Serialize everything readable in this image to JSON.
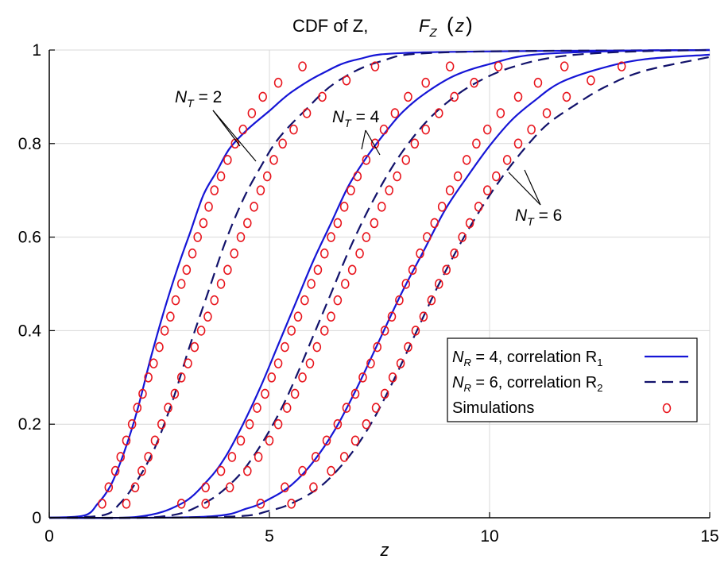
{
  "chart_data": {
    "type": "line",
    "title": "CDF of Z,",
    "title_math": "F",
    "title_math_sub": "Z",
    "title_math_arg": "z",
    "xlabel": "z",
    "ylabel": "",
    "xlim": [
      0,
      15
    ],
    "ylim": [
      0,
      1
    ],
    "x_ticks": [
      "0",
      "5",
      "10",
      "15"
    ],
    "y_ticks": [
      "0",
      "0.2",
      "0.4",
      "0.6",
      "0.8",
      "1"
    ],
    "grid": true,
    "legend_position": "bottom-right",
    "legend": [
      {
        "prefix": "N",
        "sub": "R",
        "text": " = 4, correlation R",
        "sub2": "1",
        "style": "solid"
      },
      {
        "prefix": "N",
        "sub": "R",
        "text": " = 6, correlation R",
        "sub2": "2",
        "style": "dashed"
      },
      {
        "text": "Simulations",
        "style": "marker"
      }
    ],
    "annotations": [
      {
        "symbol": "N",
        "sub": "T",
        "text": " = 2",
        "anchor_x": 3.3,
        "anchor_y": 0.885
      },
      {
        "symbol": "N",
        "sub": "T",
        "text": " = 4",
        "anchor_x": 7.3,
        "anchor_y": 0.845
      },
      {
        "symbol": "N",
        "sub": "T",
        "text": " = 6",
        "anchor_x": 11.2,
        "anchor_y": 0.655
      }
    ],
    "colors": {
      "solid": "#1515d6",
      "dashed": "#12126b",
      "marker": "#e8141c",
      "grid": "#d8d8d8",
      "axis": "#000000"
    },
    "series": [
      {
        "group": "NT=2",
        "style": "solid",
        "points": [
          [
            0,
            0
          ],
          [
            0.8,
            0.005
          ],
          [
            1.1,
            0.03
          ],
          [
            1.4,
            0.07
          ],
          [
            1.7,
            0.14
          ],
          [
            2.0,
            0.23
          ],
          [
            2.3,
            0.34
          ],
          [
            2.6,
            0.44
          ],
          [
            2.9,
            0.53
          ],
          [
            3.2,
            0.61
          ],
          [
            3.5,
            0.69
          ],
          [
            3.8,
            0.74
          ],
          [
            4.1,
            0.79
          ],
          [
            4.5,
            0.83
          ],
          [
            5.0,
            0.87
          ],
          [
            5.5,
            0.91
          ],
          [
            6.2,
            0.95
          ],
          [
            7.0,
            0.98
          ],
          [
            8.5,
            0.995
          ],
          [
            15,
            1.0
          ]
        ]
      },
      {
        "group": "NT=2",
        "style": "dashed",
        "points": [
          [
            0,
            0
          ],
          [
            1.2,
            0.005
          ],
          [
            1.6,
            0.03
          ],
          [
            2.0,
            0.08
          ],
          [
            2.4,
            0.15
          ],
          [
            2.8,
            0.25
          ],
          [
            3.2,
            0.37
          ],
          [
            3.6,
            0.48
          ],
          [
            4.0,
            0.59
          ],
          [
            4.4,
            0.68
          ],
          [
            4.8,
            0.75
          ],
          [
            5.2,
            0.81
          ],
          [
            5.8,
            0.87
          ],
          [
            6.5,
            0.93
          ],
          [
            7.5,
            0.975
          ],
          [
            9.0,
            0.995
          ],
          [
            15,
            1.0
          ]
        ]
      },
      {
        "group": "NT=4",
        "style": "solid",
        "points": [
          [
            0,
            0
          ],
          [
            2.0,
            0.002
          ],
          [
            3.0,
            0.03
          ],
          [
            3.6,
            0.08
          ],
          [
            4.0,
            0.13
          ],
          [
            4.4,
            0.2
          ],
          [
            4.8,
            0.28
          ],
          [
            5.2,
            0.37
          ],
          [
            5.6,
            0.46
          ],
          [
            6.0,
            0.55
          ],
          [
            6.4,
            0.63
          ],
          [
            6.8,
            0.71
          ],
          [
            7.2,
            0.77
          ],
          [
            7.6,
            0.82
          ],
          [
            8.0,
            0.865
          ],
          [
            8.5,
            0.905
          ],
          [
            9.2,
            0.945
          ],
          [
            10.0,
            0.97
          ],
          [
            11.0,
            0.99
          ],
          [
            13.0,
            0.998
          ],
          [
            15,
            1.0
          ]
        ]
      },
      {
        "group": "NT=4",
        "style": "dashed",
        "points": [
          [
            0,
            0
          ],
          [
            2.5,
            0.002
          ],
          [
            3.5,
            0.03
          ],
          [
            4.2,
            0.08
          ],
          [
            4.7,
            0.14
          ],
          [
            5.2,
            0.22
          ],
          [
            5.6,
            0.3
          ],
          [
            6.0,
            0.39
          ],
          [
            6.4,
            0.48
          ],
          [
            6.8,
            0.57
          ],
          [
            7.2,
            0.65
          ],
          [
            7.6,
            0.72
          ],
          [
            8.0,
            0.78
          ],
          [
            8.5,
            0.84
          ],
          [
            9.0,
            0.885
          ],
          [
            9.6,
            0.925
          ],
          [
            10.4,
            0.96
          ],
          [
            11.5,
            0.985
          ],
          [
            13.0,
            0.996
          ],
          [
            15,
            1.0
          ]
        ]
      },
      {
        "group": "NT=6",
        "style": "solid",
        "points": [
          [
            0,
            0
          ],
          [
            3.5,
            0.002
          ],
          [
            4.5,
            0.02
          ],
          [
            5.0,
            0.04
          ],
          [
            5.5,
            0.07
          ],
          [
            6.0,
            0.12
          ],
          [
            6.5,
            0.19
          ],
          [
            7.0,
            0.28
          ],
          [
            7.5,
            0.38
          ],
          [
            8.0,
            0.48
          ],
          [
            8.5,
            0.57
          ],
          [
            9.0,
            0.66
          ],
          [
            9.5,
            0.73
          ],
          [
            10.0,
            0.795
          ],
          [
            10.5,
            0.85
          ],
          [
            11.0,
            0.89
          ],
          [
            11.6,
            0.93
          ],
          [
            12.5,
            0.96
          ],
          [
            13.5,
            0.98
          ],
          [
            15,
            0.99
          ]
        ]
      },
      {
        "group": "NT=6",
        "style": "dashed",
        "points": [
          [
            0,
            0
          ],
          [
            4.0,
            0.002
          ],
          [
            5.0,
            0.015
          ],
          [
            5.6,
            0.035
          ],
          [
            6.2,
            0.07
          ],
          [
            6.8,
            0.13
          ],
          [
            7.3,
            0.2
          ],
          [
            7.8,
            0.29
          ],
          [
            8.3,
            0.39
          ],
          [
            8.8,
            0.49
          ],
          [
            9.3,
            0.58
          ],
          [
            9.8,
            0.66
          ],
          [
            10.3,
            0.73
          ],
          [
            10.8,
            0.79
          ],
          [
            11.3,
            0.84
          ],
          [
            11.9,
            0.88
          ],
          [
            12.6,
            0.92
          ],
          [
            13.5,
            0.955
          ],
          [
            15,
            0.985
          ]
        ]
      }
    ],
    "markers": [
      {
        "group": "NT=2",
        "points": [
          [
            1.2,
            0.03
          ],
          [
            1.35,
            0.065
          ],
          [
            1.5,
            0.1
          ],
          [
            1.62,
            0.13
          ],
          [
            1.75,
            0.165
          ],
          [
            1.88,
            0.2
          ],
          [
            2.0,
            0.235
          ],
          [
            2.12,
            0.265
          ],
          [
            2.25,
            0.3
          ],
          [
            2.37,
            0.33
          ],
          [
            2.5,
            0.365
          ],
          [
            2.62,
            0.4
          ],
          [
            2.75,
            0.43
          ],
          [
            2.87,
            0.465
          ],
          [
            3.0,
            0.5
          ],
          [
            3.12,
            0.53
          ],
          [
            3.25,
            0.565
          ],
          [
            3.37,
            0.6
          ],
          [
            3.5,
            0.63
          ],
          [
            3.62,
            0.665
          ],
          [
            3.75,
            0.7
          ],
          [
            3.9,
            0.73
          ],
          [
            4.05,
            0.765
          ],
          [
            4.22,
            0.8
          ],
          [
            4.4,
            0.83
          ],
          [
            4.6,
            0.865
          ],
          [
            4.85,
            0.9
          ],
          [
            5.2,
            0.93
          ],
          [
            5.75,
            0.965
          ],
          [
            1.75,
            0.03
          ],
          [
            1.95,
            0.065
          ],
          [
            2.1,
            0.1
          ],
          [
            2.25,
            0.13
          ],
          [
            2.4,
            0.165
          ],
          [
            2.55,
            0.2
          ],
          [
            2.7,
            0.235
          ],
          [
            2.85,
            0.265
          ],
          [
            3.0,
            0.3
          ],
          [
            3.15,
            0.33
          ],
          [
            3.3,
            0.365
          ],
          [
            3.45,
            0.4
          ],
          [
            3.6,
            0.43
          ],
          [
            3.75,
            0.465
          ],
          [
            3.9,
            0.5
          ],
          [
            4.05,
            0.53
          ],
          [
            4.2,
            0.565
          ],
          [
            4.35,
            0.6
          ],
          [
            4.5,
            0.63
          ],
          [
            4.65,
            0.665
          ],
          [
            4.8,
            0.7
          ],
          [
            4.95,
            0.73
          ],
          [
            5.1,
            0.765
          ],
          [
            5.3,
            0.8
          ],
          [
            5.55,
            0.83
          ],
          [
            5.85,
            0.865
          ],
          [
            6.2,
            0.9
          ],
          [
            6.75,
            0.935
          ],
          [
            7.4,
            0.965
          ]
        ]
      },
      {
        "group": "NT=4",
        "points": [
          [
            3.0,
            0.03
          ],
          [
            3.55,
            0.065
          ],
          [
            3.9,
            0.1
          ],
          [
            4.15,
            0.13
          ],
          [
            4.35,
            0.165
          ],
          [
            4.55,
            0.2
          ],
          [
            4.72,
            0.235
          ],
          [
            4.9,
            0.265
          ],
          [
            5.05,
            0.3
          ],
          [
            5.2,
            0.33
          ],
          [
            5.35,
            0.365
          ],
          [
            5.5,
            0.4
          ],
          [
            5.65,
            0.43
          ],
          [
            5.8,
            0.465
          ],
          [
            5.95,
            0.5
          ],
          [
            6.1,
            0.53
          ],
          [
            6.25,
            0.565
          ],
          [
            6.4,
            0.6
          ],
          [
            6.55,
            0.63
          ],
          [
            6.7,
            0.665
          ],
          [
            6.85,
            0.7
          ],
          [
            7.0,
            0.73
          ],
          [
            7.2,
            0.765
          ],
          [
            7.4,
            0.8
          ],
          [
            7.6,
            0.83
          ],
          [
            7.85,
            0.865
          ],
          [
            8.15,
            0.9
          ],
          [
            8.55,
            0.93
          ],
          [
            9.1,
            0.965
          ],
          [
            3.55,
            0.03
          ],
          [
            4.1,
            0.065
          ],
          [
            4.5,
            0.1
          ],
          [
            4.75,
            0.13
          ],
          [
            5.0,
            0.165
          ],
          [
            5.2,
            0.2
          ],
          [
            5.4,
            0.235
          ],
          [
            5.58,
            0.265
          ],
          [
            5.75,
            0.3
          ],
          [
            5.92,
            0.33
          ],
          [
            6.08,
            0.365
          ],
          [
            6.25,
            0.4
          ],
          [
            6.4,
            0.43
          ],
          [
            6.55,
            0.465
          ],
          [
            6.72,
            0.5
          ],
          [
            6.88,
            0.53
          ],
          [
            7.05,
            0.565
          ],
          [
            7.2,
            0.6
          ],
          [
            7.38,
            0.63
          ],
          [
            7.55,
            0.665
          ],
          [
            7.72,
            0.7
          ],
          [
            7.9,
            0.73
          ],
          [
            8.1,
            0.765
          ],
          [
            8.3,
            0.8
          ],
          [
            8.55,
            0.83
          ],
          [
            8.85,
            0.865
          ],
          [
            9.2,
            0.9
          ],
          [
            9.65,
            0.93
          ],
          [
            10.2,
            0.965
          ]
        ]
      },
      {
        "group": "NT=6",
        "points": [
          [
            4.8,
            0.03
          ],
          [
            5.35,
            0.065
          ],
          [
            5.75,
            0.1
          ],
          [
            6.05,
            0.13
          ],
          [
            6.3,
            0.165
          ],
          [
            6.55,
            0.2
          ],
          [
            6.75,
            0.235
          ],
          [
            6.95,
            0.265
          ],
          [
            7.12,
            0.3
          ],
          [
            7.3,
            0.33
          ],
          [
            7.45,
            0.365
          ],
          [
            7.62,
            0.4
          ],
          [
            7.78,
            0.43
          ],
          [
            7.95,
            0.465
          ],
          [
            8.1,
            0.5
          ],
          [
            8.25,
            0.53
          ],
          [
            8.42,
            0.565
          ],
          [
            8.58,
            0.6
          ],
          [
            8.75,
            0.63
          ],
          [
            8.92,
            0.665
          ],
          [
            9.1,
            0.7
          ],
          [
            9.28,
            0.73
          ],
          [
            9.48,
            0.765
          ],
          [
            9.7,
            0.8
          ],
          [
            9.95,
            0.83
          ],
          [
            10.25,
            0.865
          ],
          [
            10.65,
            0.9
          ],
          [
            11.1,
            0.93
          ],
          [
            11.7,
            0.965
          ],
          [
            5.5,
            0.03
          ],
          [
            6.0,
            0.065
          ],
          [
            6.4,
            0.1
          ],
          [
            6.7,
            0.13
          ],
          [
            6.95,
            0.165
          ],
          [
            7.2,
            0.2
          ],
          [
            7.42,
            0.235
          ],
          [
            7.62,
            0.265
          ],
          [
            7.8,
            0.3
          ],
          [
            7.98,
            0.33
          ],
          [
            8.15,
            0.365
          ],
          [
            8.32,
            0.4
          ],
          [
            8.5,
            0.43
          ],
          [
            8.68,
            0.465
          ],
          [
            8.85,
            0.5
          ],
          [
            9.02,
            0.53
          ],
          [
            9.2,
            0.565
          ],
          [
            9.38,
            0.6
          ],
          [
            9.55,
            0.63
          ],
          [
            9.75,
            0.665
          ],
          [
            9.95,
            0.7
          ],
          [
            10.15,
            0.73
          ],
          [
            10.4,
            0.765
          ],
          [
            10.65,
            0.8
          ],
          [
            10.95,
            0.83
          ],
          [
            11.3,
            0.865
          ],
          [
            11.75,
            0.9
          ],
          [
            12.3,
            0.935
          ],
          [
            13.0,
            0.965
          ]
        ]
      }
    ]
  }
}
